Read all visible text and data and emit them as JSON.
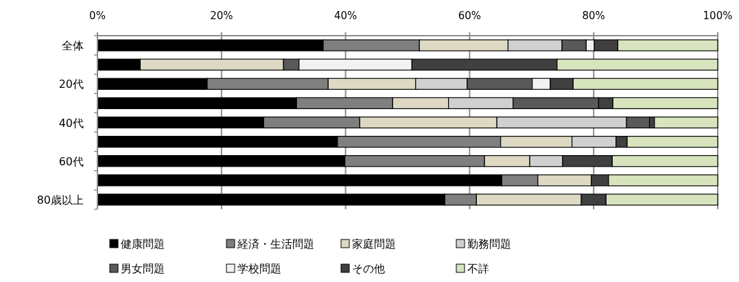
{
  "chart_data": {
    "type": "bar",
    "orientation": "horizontal",
    "stacked": true,
    "categories": [
      "全体",
      null,
      "20代",
      null,
      "40代",
      null,
      "60代",
      null,
      "80歳以上"
    ],
    "series": [
      {
        "name": "健康問題",
        "color": "#000000",
        "values": [
          36.4,
          6.9,
          17.7,
          32.1,
          26.8,
          38.7,
          39.9,
          65.2,
          56.0
        ]
      },
      {
        "name": "経済・生活問題",
        "color": "#7f7f7f",
        "values": [
          15.5,
          0,
          19.5,
          15.5,
          15.5,
          26.3,
          22.5,
          5.8,
          5.1
        ]
      },
      {
        "name": "家庭問題",
        "color": "#ddd9c3",
        "values": [
          14.3,
          23.1,
          14.1,
          9.0,
          22.1,
          11.5,
          7.3,
          8.6,
          16.9
        ]
      },
      {
        "name": "勤務問題",
        "color": "#d0d0d0",
        "values": [
          8.7,
          0,
          8.3,
          10.4,
          20.9,
          7.1,
          5.3,
          0,
          0
        ]
      },
      {
        "name": "男女問題",
        "color": "#595959",
        "values": [
          3.9,
          2.5,
          10.5,
          13.8,
          3.7,
          0,
          0,
          0,
          0
        ]
      },
      {
        "name": "学校問題",
        "color": "#f2f2f2",
        "values": [
          1.3,
          18.2,
          2.9,
          0,
          0,
          0,
          0,
          0,
          0
        ]
      },
      {
        "name": "その他",
        "color": "#404040",
        "values": [
          3.8,
          23.4,
          3.7,
          2.3,
          0.8,
          1.8,
          8.0,
          2.8,
          4.0
        ]
      },
      {
        "name": "不詳",
        "color": "#d7e4bd",
        "values": [
          16.1,
          25.9,
          23.3,
          16.9,
          10.2,
          14.6,
          17.0,
          17.6,
          18.0
        ]
      }
    ],
    "xlim": [
      0,
      100
    ],
    "xticks": [
      {
        "value": 0,
        "label": "0%"
      },
      {
        "value": 20,
        "label": "20%"
      },
      {
        "value": 40,
        "label": "40%"
      },
      {
        "value": 60,
        "label": "60%"
      },
      {
        "value": 80,
        "label": "80%"
      },
      {
        "value": 100,
        "label": "100%"
      }
    ],
    "grid": "x",
    "legend": "bottom"
  }
}
